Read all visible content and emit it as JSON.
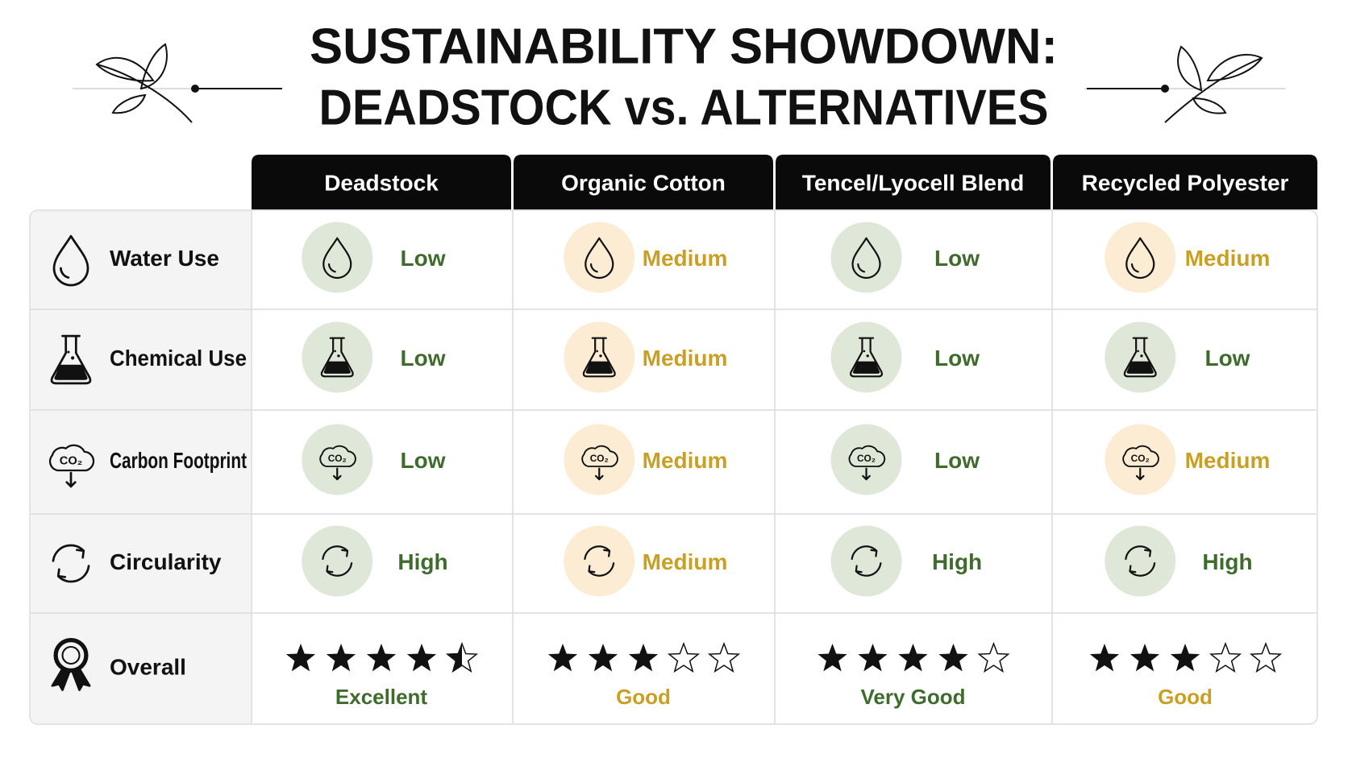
{
  "header": {
    "title_lines": [
      "SUSTAINABILITY SHOWDOWN:",
      "DEADSTOCK vs. ALTERNATIVES"
    ]
  },
  "table": {
    "columns": [
      "Deadstock",
      "Organic Cotton",
      "Tencel/Lyocell Blend",
      "Recycled Polyester"
    ],
    "rows": [
      {
        "label": "Water Use",
        "cells": [
          {
            "text": "Low",
            "color": "#3f6b2c",
            "bg": "#dfe8d8"
          },
          {
            "text": "Medium",
            "color": "#c9a024",
            "bg": "#fbecd3"
          },
          {
            "text": "Low",
            "color": "#3f6b2c",
            "bg": "#dfe8d8"
          },
          {
            "text": "Medium",
            "color": "#c9a024",
            "bg": "#fbecd3"
          }
        ]
      },
      {
        "label": "Chemical Use",
        "cells": [
          {
            "text": "Low",
            "color": "#3f6b2c",
            "bg": "#dfe8d8"
          },
          {
            "text": "Medium",
            "color": "#c9a024",
            "bg": "#fbecd3"
          },
          {
            "text": "Low",
            "color": "#3f6b2c",
            "bg": "#dfe8d8"
          },
          {
            "text": "Low",
            "color": "#3f6b2c",
            "bg": "#dfe8d8"
          }
        ]
      },
      {
        "label": "Carbon Footprint",
        "icon_text": "CO₂",
        "cells": [
          {
            "text": "Low",
            "color": "#3f6b2c",
            "bg": "#dfe8d8"
          },
          {
            "text": "Medium",
            "color": "#c9a024",
            "bg": "#fbecd3"
          },
          {
            "text": "Low",
            "color": "#3f6b2c",
            "bg": "#dfe8d8"
          },
          {
            "text": "Medium",
            "color": "#c9a024",
            "bg": "#fbecd3"
          }
        ]
      },
      {
        "label": "Circularity",
        "cells": [
          {
            "text": "High",
            "color": "#3f6b2c",
            "bg": "#dfe8d8"
          },
          {
            "text": "Medium",
            "color": "#c9a024",
            "bg": "#fbecd3"
          },
          {
            "text": "High",
            "color": "#3f6b2c",
            "bg": "#dfe8d8"
          },
          {
            "text": "High",
            "color": "#3f6b2c",
            "bg": "#dfe8d8"
          }
        ]
      }
    ],
    "overall": {
      "label": "Overall",
      "stars": [
        4.5,
        3,
        4,
        3
      ],
      "max_stars": 5,
      "ratings": [
        {
          "text": "Excellent",
          "color": "#3f6b2c"
        },
        {
          "text": "Good",
          "color": "#c9a024"
        },
        {
          "text": "Very Good",
          "color": "#3f6b2c"
        },
        {
          "text": "Good",
          "color": "#c9a024"
        }
      ]
    }
  }
}
